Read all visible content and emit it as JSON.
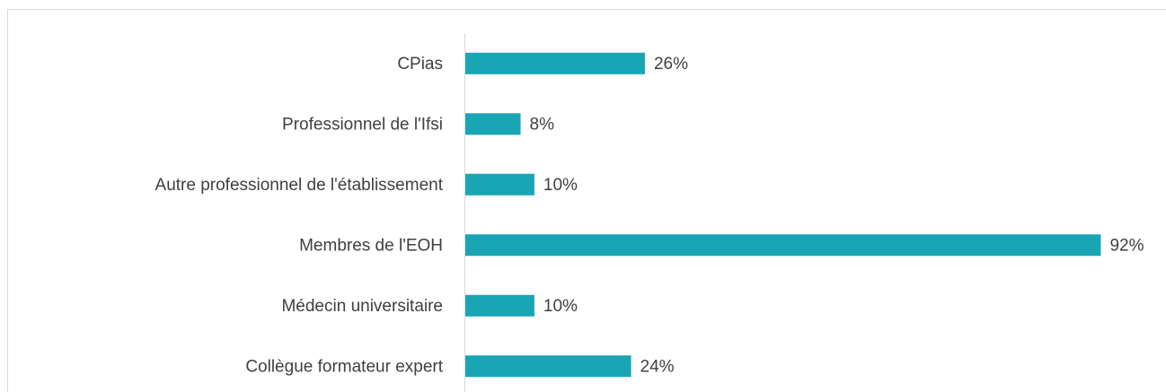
{
  "chart_data": {
    "type": "barh",
    "categories": [
      "CPias",
      "Professionnel de l'Ifsi",
      "Autre professionnel de l'établissement",
      "Membres de l'EOH",
      "Médecin universitaire",
      "Collègue formateur expert"
    ],
    "values": [
      26,
      8,
      10,
      92,
      10,
      24
    ],
    "value_labels": [
      "26%",
      "8%",
      "10%",
      "92%",
      "10%",
      "24%"
    ],
    "color": "#19a5b3",
    "xlim": [
      0,
      100
    ]
  }
}
